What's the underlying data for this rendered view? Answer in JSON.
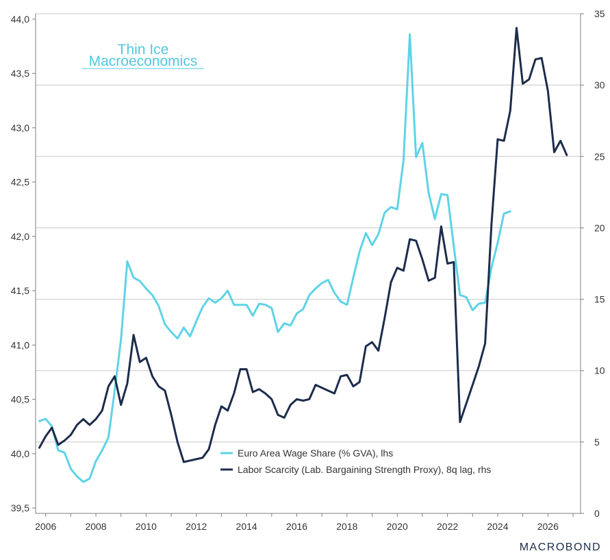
{
  "logo": {
    "line1": "Thin Ice",
    "line2": "Macroeconomics"
  },
  "brand": "MACROBOND",
  "colors": {
    "wage_share": "#5ed3e6",
    "labor_scarcity": "#1c2c4b",
    "grid": "#c8c8c8",
    "axis": "#7f7f7f"
  },
  "chart_data": {
    "type": "line",
    "x_axis": {
      "min": 2005.6,
      "max": 2027.3,
      "ticks": [
        2006,
        2008,
        2010,
        2012,
        2014,
        2016,
        2018,
        2020,
        2022,
        2024,
        2026
      ]
    },
    "y_left": {
      "min": 39.45,
      "max": 44.05,
      "ticks": [
        "39,5",
        "40,0",
        "40,5",
        "41,0",
        "41,5",
        "42,0",
        "42,5",
        "43,0",
        "43,5",
        "44,0"
      ],
      "tick_values": [
        39.5,
        40.0,
        40.5,
        41.0,
        41.5,
        42.0,
        42.5,
        43.0,
        43.5,
        44.0
      ]
    },
    "y_right": {
      "min": 0,
      "max": 35,
      "ticks": [
        "0",
        "5",
        "10",
        "15",
        "20",
        "25",
        "30",
        "35"
      ],
      "tick_values": [
        0,
        5,
        10,
        15,
        20,
        25,
        30,
        35
      ]
    },
    "grid": true,
    "legend_position": "bottom-center",
    "series": [
      {
        "name": "Euro Area Wage Share (% GVA), lhs",
        "axis": "left",
        "x": [
          2005.75,
          2006.0,
          2006.25,
          2006.5,
          2006.75,
          2007.0,
          2007.25,
          2007.5,
          2007.75,
          2008.0,
          2008.25,
          2008.5,
          2008.75,
          2009.0,
          2009.25,
          2009.5,
          2009.75,
          2010.0,
          2010.25,
          2010.5,
          2010.75,
          2011.0,
          2011.25,
          2011.5,
          2011.75,
          2012.0,
          2012.25,
          2012.5,
          2012.75,
          2013.0,
          2013.25,
          2013.5,
          2013.75,
          2014.0,
          2014.25,
          2014.5,
          2014.75,
          2015.0,
          2015.25,
          2015.5,
          2015.75,
          2016.0,
          2016.25,
          2016.5,
          2016.75,
          2017.0,
          2017.25,
          2017.5,
          2017.75,
          2018.0,
          2018.25,
          2018.5,
          2018.75,
          2019.0,
          2019.25,
          2019.5,
          2019.75,
          2020.0,
          2020.25,
          2020.5,
          2020.75,
          2021.0,
          2021.25,
          2021.5,
          2021.75,
          2022.0,
          2022.25,
          2022.5,
          2022.75,
          2023.0,
          2023.25,
          2023.5,
          2023.75,
          2024.0,
          2024.25,
          2024.5
        ],
        "values": [
          40.3,
          40.32,
          40.25,
          40.03,
          40.01,
          39.86,
          39.79,
          39.74,
          39.77,
          39.93,
          40.03,
          40.15,
          40.58,
          41.05,
          41.77,
          41.62,
          41.59,
          41.52,
          41.46,
          41.36,
          41.19,
          41.12,
          41.06,
          41.16,
          41.08,
          41.22,
          41.35,
          41.43,
          41.39,
          41.43,
          41.5,
          41.37,
          41.37,
          41.37,
          41.27,
          41.38,
          41.37,
          41.34,
          41.12,
          41.2,
          41.18,
          41.29,
          41.33,
          41.46,
          41.52,
          41.57,
          41.6,
          41.48,
          41.4,
          41.37,
          41.62,
          41.86,
          42.03,
          41.92,
          42.02,
          42.22,
          42.27,
          42.25,
          42.7,
          43.86,
          42.73,
          42.86,
          42.4,
          42.16,
          42.39,
          42.38,
          41.91,
          41.46,
          41.44,
          41.32,
          41.38,
          41.39,
          41.71,
          41.94,
          42.21,
          42.23
        ]
      },
      {
        "name": "Labor Scarcity (Lab. Bargaining Strength Proxy), 8q lag, rhs",
        "axis": "right",
        "x": [
          2005.75,
          2006.0,
          2006.25,
          2006.5,
          2006.75,
          2007.0,
          2007.25,
          2007.5,
          2007.75,
          2008.0,
          2008.25,
          2008.5,
          2008.75,
          2009.0,
          2009.25,
          2009.5,
          2009.75,
          2010.0,
          2010.25,
          2010.5,
          2010.75,
          2011.0,
          2011.25,
          2011.5,
          2011.75,
          2012.0,
          2012.25,
          2012.5,
          2012.75,
          2013.0,
          2013.25,
          2013.5,
          2013.75,
          2014.0,
          2014.25,
          2014.5,
          2014.75,
          2015.0,
          2015.25,
          2015.5,
          2015.75,
          2016.0,
          2016.25,
          2016.5,
          2016.75,
          2017.0,
          2017.25,
          2017.5,
          2017.75,
          2018.0,
          2018.25,
          2018.5,
          2018.75,
          2019.0,
          2019.25,
          2019.5,
          2019.75,
          2020.0,
          2020.25,
          2020.5,
          2020.75,
          2021.0,
          2021.25,
          2021.5,
          2021.75,
          2022.0,
          2022.25,
          2022.5,
          2022.75,
          2023.0,
          2023.25,
          2023.5,
          2023.75,
          2024.0,
          2024.25,
          2024.5,
          2024.75,
          2025.0,
          2025.25,
          2025.5,
          2025.75,
          2026.0,
          2026.25,
          2026.5,
          2026.75
        ],
        "values": [
          4.6,
          5.4,
          6.0,
          4.8,
          5.1,
          5.5,
          6.2,
          6.6,
          6.2,
          6.6,
          7.2,
          8.9,
          9.6,
          7.6,
          9.1,
          12.5,
          10.6,
          10.9,
          9.6,
          8.9,
          8.6,
          6.9,
          5.0,
          3.6,
          3.7,
          3.8,
          3.9,
          4.5,
          6.2,
          7.5,
          7.2,
          8.4,
          10.1,
          10.1,
          8.5,
          8.7,
          8.4,
          8.0,
          6.9,
          6.7,
          7.6,
          8.0,
          7.9,
          8.0,
          9.0,
          8.8,
          8.6,
          8.4,
          9.6,
          9.7,
          8.9,
          9.2,
          11.7,
          12.0,
          11.4,
          13.7,
          16.2,
          17.2,
          17.0,
          19.2,
          19.1,
          17.8,
          16.3,
          16.5,
          20.1,
          17.5,
          17.6,
          6.4,
          7.7,
          9.0,
          10.3,
          11.9,
          20.2,
          26.2,
          26.1,
          28.2,
          34.0,
          30.1,
          30.4,
          31.8,
          31.9,
          29.6,
          25.3,
          26.1,
          25.1
        ]
      }
    ]
  }
}
